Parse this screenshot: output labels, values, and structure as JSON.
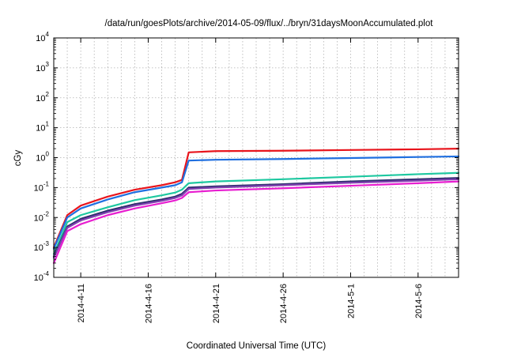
{
  "chart_data": {
    "type": "line",
    "title": "/data/run/goesPlots/archive/2014-05-09/flux/../bryn/31daysMoonAccumulated.plot",
    "xlabel": "Coordinated Universal Time (UTC)",
    "ylabel": "cGy",
    "y_scale": "log",
    "ylim": [
      0.0001,
      10000
    ],
    "y_ticks": [
      {
        "base": "10",
        "exp": "-4",
        "value": 0.0001
      },
      {
        "base": "10",
        "exp": "-3",
        "value": 0.001
      },
      {
        "base": "10",
        "exp": "-2",
        "value": 0.01
      },
      {
        "base": "10",
        "exp": "-1",
        "value": 0.1
      },
      {
        "base": "10",
        "exp": "0",
        "value": 1
      },
      {
        "base": "10",
        "exp": "1",
        "value": 10
      },
      {
        "base": "10",
        "exp": "2",
        "value": 100
      },
      {
        "base": "10",
        "exp": "3",
        "value": 1000
      },
      {
        "base": "10",
        "exp": "4",
        "value": 10000
      }
    ],
    "xlim": [
      "2014-04-09",
      "2014-05-09"
    ],
    "x_ticks": [
      "2014-4-11",
      "2014-4-16",
      "2014-4-21",
      "2014-4-26",
      "2014-5-1",
      "2014-5-6"
    ],
    "grid": true,
    "series": [
      {
        "color": "#e8141c",
        "x": [
          "2014-04-09",
          "2014-04-10",
          "2014-04-11",
          "2014-04-13",
          "2014-04-15",
          "2014-04-17",
          "2014-04-18",
          "2014-04-18.5",
          "2014-04-19",
          "2014-04-21",
          "2014-04-26",
          "2014-05-01",
          "2014-05-06",
          "2014-05-09"
        ],
        "values": [
          0.001,
          0.012,
          0.025,
          0.05,
          0.085,
          0.12,
          0.15,
          0.18,
          1.5,
          1.65,
          1.7,
          1.8,
          1.9,
          2.0
        ]
      },
      {
        "color": "#1f6fe0",
        "x": [
          "2014-04-09",
          "2014-04-10",
          "2014-04-11",
          "2014-04-13",
          "2014-04-15",
          "2014-04-17",
          "2014-04-18",
          "2014-04-18.5",
          "2014-04-19",
          "2014-04-21",
          "2014-04-26",
          "2014-05-01",
          "2014-05-06",
          "2014-05-09"
        ],
        "values": [
          0.0009,
          0.01,
          0.02,
          0.04,
          0.07,
          0.1,
          0.12,
          0.15,
          0.8,
          0.85,
          0.9,
          0.97,
          1.05,
          1.1
        ]
      },
      {
        "color": "#1ec8a0",
        "x": [
          "2014-04-09",
          "2014-04-10",
          "2014-04-11",
          "2014-04-13",
          "2014-04-15",
          "2014-04-17",
          "2014-04-18",
          "2014-04-18.5",
          "2014-04-19",
          "2014-04-21",
          "2014-04-26",
          "2014-05-01",
          "2014-05-06",
          "2014-05-09"
        ],
        "values": [
          0.0006,
          0.007,
          0.012,
          0.022,
          0.038,
          0.055,
          0.068,
          0.085,
          0.14,
          0.16,
          0.19,
          0.23,
          0.28,
          0.31
        ]
      },
      {
        "color": "#2e2e6e",
        "x": [
          "2014-04-09",
          "2014-04-10",
          "2014-04-11",
          "2014-04-13",
          "2014-04-15",
          "2014-04-17",
          "2014-04-18",
          "2014-04-18.5",
          "2014-04-19",
          "2014-04-21",
          "2014-04-26",
          "2014-05-01",
          "2014-05-06",
          "2014-05-09"
        ],
        "values": [
          0.0005,
          0.005,
          0.009,
          0.017,
          0.028,
          0.04,
          0.05,
          0.062,
          0.1,
          0.11,
          0.13,
          0.16,
          0.19,
          0.21
        ]
      },
      {
        "color": "#8040b0",
        "x": [
          "2014-04-09",
          "2014-04-10",
          "2014-04-11",
          "2014-04-13",
          "2014-04-15",
          "2014-04-17",
          "2014-04-18",
          "2014-04-18.5",
          "2014-04-19",
          "2014-04-21",
          "2014-04-26",
          "2014-05-01",
          "2014-05-06",
          "2014-05-09"
        ],
        "values": [
          0.00045,
          0.0045,
          0.008,
          0.015,
          0.025,
          0.036,
          0.045,
          0.055,
          0.09,
          0.1,
          0.12,
          0.145,
          0.17,
          0.19
        ]
      },
      {
        "color": "#e81ed0",
        "x": [
          "2014-04-09",
          "2014-04-10",
          "2014-04-11",
          "2014-04-13",
          "2014-04-15",
          "2014-04-17",
          "2014-04-18",
          "2014-04-18.5",
          "2014-04-19",
          "2014-04-21",
          "2014-04-26",
          "2014-05-01",
          "2014-05-06",
          "2014-05-09"
        ],
        "values": [
          0.0003,
          0.0035,
          0.006,
          0.012,
          0.02,
          0.03,
          0.037,
          0.045,
          0.07,
          0.08,
          0.095,
          0.115,
          0.14,
          0.16
        ]
      }
    ]
  }
}
